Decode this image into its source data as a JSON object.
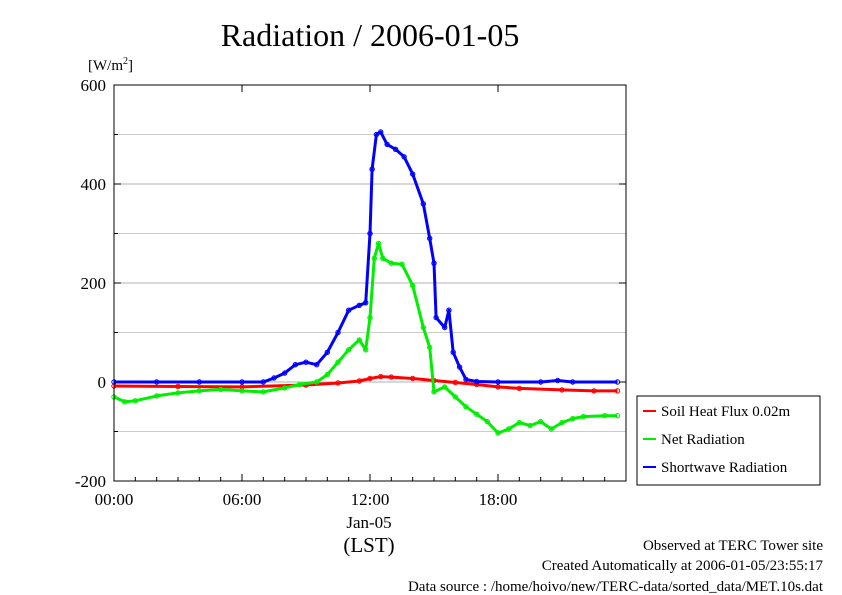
{
  "chart_data": {
    "type": "line",
    "title": "Radiation / 2006-01-05",
    "ylabel": "[W/m",
    "ylabel_sup": "2",
    "ylabel_close": "]",
    "xlabel": "(LST)",
    "date_label": "Jan-05",
    "xlim": [
      0,
      24
    ],
    "ylim": [
      -200,
      600
    ],
    "x_ticks": [
      {
        "value": 0,
        "label": "00:00"
      },
      {
        "value": 6,
        "label": "06:00"
      },
      {
        "value": 12,
        "label": "12:00"
      },
      {
        "value": 18,
        "label": "18:00"
      }
    ],
    "y_ticks": [
      {
        "value": -200,
        "label": "-200"
      },
      {
        "value": 0,
        "label": "0"
      },
      {
        "value": 200,
        "label": "200"
      },
      {
        "value": 400,
        "label": "400"
      },
      {
        "value": 600,
        "label": "600"
      }
    ],
    "grid": "horizontal",
    "legend_position": "right",
    "series": [
      {
        "name": "Soil Heat Flux 0.02m",
        "color": "#ff0000",
        "points": [
          [
            0,
            -8
          ],
          [
            3,
            -9
          ],
          [
            6,
            -10
          ],
          [
            9,
            -6
          ],
          [
            10.5,
            -2
          ],
          [
            11.5,
            2
          ],
          [
            12,
            7
          ],
          [
            12.5,
            11
          ],
          [
            13,
            10
          ],
          [
            14,
            7
          ],
          [
            15,
            3
          ],
          [
            16,
            -1
          ],
          [
            17,
            -5
          ],
          [
            18,
            -10
          ],
          [
            19,
            -13
          ],
          [
            21,
            -16
          ],
          [
            22.5,
            -18
          ],
          [
            23.6,
            -18
          ]
        ]
      },
      {
        "name": "Net Radiation",
        "color": "#00ee00",
        "points": [
          [
            0,
            -30
          ],
          [
            0.5,
            -40
          ],
          [
            1,
            -38
          ],
          [
            2,
            -28
          ],
          [
            3,
            -22
          ],
          [
            4,
            -18
          ],
          [
            5,
            -15
          ],
          [
            6,
            -18
          ],
          [
            7,
            -20
          ],
          [
            8,
            -12
          ],
          [
            8.7,
            -5
          ],
          [
            9.5,
            0
          ],
          [
            10,
            15
          ],
          [
            10.5,
            40
          ],
          [
            11,
            65
          ],
          [
            11.5,
            85
          ],
          [
            11.8,
            65
          ],
          [
            12,
            130
          ],
          [
            12.2,
            250
          ],
          [
            12.4,
            280
          ],
          [
            12.6,
            250
          ],
          [
            13,
            240
          ],
          [
            13.5,
            238
          ],
          [
            14,
            195
          ],
          [
            14.5,
            110
          ],
          [
            14.8,
            70
          ],
          [
            15,
            -20
          ],
          [
            15.5,
            -10
          ],
          [
            16,
            -30
          ],
          [
            16.5,
            -50
          ],
          [
            17,
            -65
          ],
          [
            17.5,
            -80
          ],
          [
            18,
            -103
          ],
          [
            18.5,
            -95
          ],
          [
            19,
            -82
          ],
          [
            19.5,
            -88
          ],
          [
            20,
            -80
          ],
          [
            20.5,
            -95
          ],
          [
            21,
            -82
          ],
          [
            21.5,
            -74
          ],
          [
            22,
            -70
          ],
          [
            23,
            -68
          ],
          [
            23.6,
            -68
          ]
        ]
      },
      {
        "name": "Shortwave Radiation",
        "color": "#0000ff",
        "points": [
          [
            0,
            0
          ],
          [
            2,
            0
          ],
          [
            4,
            0
          ],
          [
            6,
            0
          ],
          [
            7,
            0
          ],
          [
            7.5,
            8
          ],
          [
            8,
            18
          ],
          [
            8.5,
            35
          ],
          [
            9,
            40
          ],
          [
            9.5,
            35
          ],
          [
            10,
            60
          ],
          [
            10.5,
            100
          ],
          [
            11,
            145
          ],
          [
            11.5,
            155
          ],
          [
            11.8,
            160
          ],
          [
            12,
            300
          ],
          [
            12.1,
            430
          ],
          [
            12.3,
            500
          ],
          [
            12.5,
            505
          ],
          [
            12.8,
            480
          ],
          [
            13.2,
            470
          ],
          [
            13.6,
            455
          ],
          [
            14,
            420
          ],
          [
            14.5,
            360
          ],
          [
            14.8,
            290
          ],
          [
            15,
            240
          ],
          [
            15.1,
            130
          ],
          [
            15.5,
            110
          ],
          [
            15.7,
            145
          ],
          [
            15.9,
            60
          ],
          [
            16.2,
            30
          ],
          [
            16.5,
            5
          ],
          [
            17,
            1
          ],
          [
            18,
            0
          ],
          [
            20,
            0
          ],
          [
            20.8,
            3
          ],
          [
            21.5,
            0
          ],
          [
            23.6,
            0
          ]
        ]
      }
    ]
  },
  "legend": {
    "items": [
      {
        "label": "Soil Heat Flux 0.02m",
        "color": "#ff0000"
      },
      {
        "label": "Net Radiation",
        "color": "#00ee00"
      },
      {
        "label": "Shortwave Radiation",
        "color": "#0000ff"
      }
    ]
  },
  "footer": {
    "line1": "Observed at TERC Tower site",
    "line2": "Created Automatically at 2006-01-05/23:55:17",
    "line3": "Data source : /home/hoivo/new/TERC-data/sorted_data/MET.10s.dat"
  }
}
